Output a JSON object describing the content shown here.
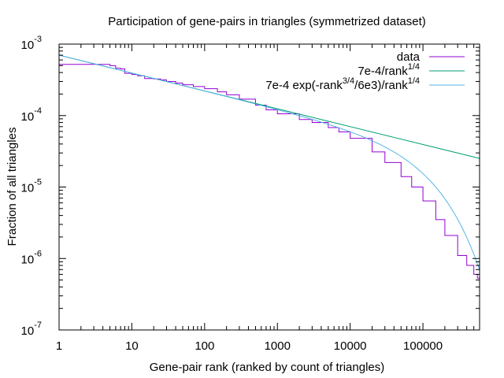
{
  "chart_data": {
    "type": "line",
    "title": "Participation of gene-pairs in triangles (symmetrized dataset)",
    "xlabel": "Gene-pair rank (ranked by count of triangles)",
    "ylabel": "Fraction of all triangles",
    "xscale": "log",
    "yscale": "log",
    "xlim": [
      1,
      600000
    ],
    "ylim": [
      1e-07,
      0.001
    ],
    "grid": false,
    "legend_position": "top-right",
    "x_ticks": [
      {
        "value": 1,
        "label": "1"
      },
      {
        "value": 10,
        "label": "10"
      },
      {
        "value": 100,
        "label": "100"
      },
      {
        "value": 1000,
        "label": "1000"
      },
      {
        "value": 10000,
        "label": "10000"
      },
      {
        "value": 100000,
        "label": "100000"
      }
    ],
    "y_ticks": [
      {
        "value": 1e-07,
        "mant": "10",
        "exp": "-7"
      },
      {
        "value": 1e-06,
        "mant": "10",
        "exp": "-6"
      },
      {
        "value": 1e-05,
        "mant": "10",
        "exp": "-5"
      },
      {
        "value": 0.0001,
        "mant": "10",
        "exp": "-4"
      },
      {
        "value": 0.001,
        "mant": "10",
        "exp": "-3"
      }
    ],
    "series": [
      {
        "name": "data",
        "color": "#9400d3",
        "style": "steps",
        "x": [
          1,
          2,
          3,
          4,
          5,
          6,
          7,
          8,
          10,
          12,
          15,
          20,
          25,
          30,
          40,
          50,
          70,
          100,
          150,
          200,
          300,
          500,
          700,
          1000,
          2000,
          3000,
          5000,
          7000,
          10000,
          20000,
          30000,
          50000,
          70000,
          100000,
          150000,
          200000,
          300000,
          400000,
          500000,
          560000,
          600000
        ],
        "y": [
          0.00052,
          0.00052,
          0.00052,
          0.00052,
          0.0005,
          0.00046,
          0.00045,
          0.00039,
          0.000375,
          0.00036,
          0.00033,
          0.000325,
          0.000315,
          0.0003,
          0.000285,
          0.00027,
          0.000255,
          0.000238,
          0.000215,
          0.000195,
          0.00017,
          0.00014,
          0.00012,
          0.000106,
          8.8e-05,
          8e-05,
          6.8e-05,
          5.9e-05,
          4.8e-05,
          3.1e-05,
          2.2e-05,
          1.4e-05,
          1e-05,
          6.4e-06,
          3.5e-06,
          2.1e-06,
          1.1e-06,
          8e-07,
          6e-07,
          5.3e-07,
          5.3e-07
        ]
      },
      {
        "name": "7e-4/rank",
        "name_sup": "1/4",
        "color": "#009e73",
        "style": "function",
        "formula": "7e-4/rank^(1/4)"
      },
      {
        "name": "7e-4 exp(-rank",
        "name_sup": "3/4",
        "name_mid": "/6e3)/rank",
        "name_sup2": "1/4",
        "color": "#56b4e9",
        "style": "function",
        "formula": "7e-4*exp(-rank^(3/4)/6e3)/rank^(1/4)"
      }
    ]
  }
}
